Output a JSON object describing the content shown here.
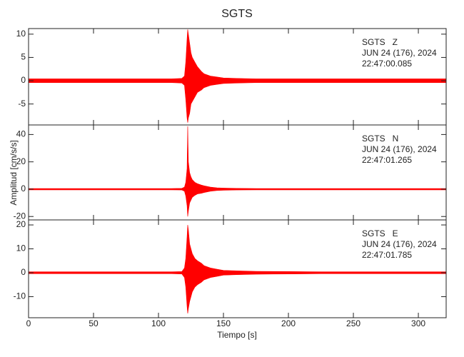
{
  "chart_data": {
    "type": "band",
    "title": "SGTS",
    "x_label": "Tiempo [s]",
    "y_label": "Amplitud [cm/s/s]",
    "xlim": [
      0,
      321.4
    ],
    "xticks": [
      0,
      50,
      100,
      150,
      200,
      250,
      300
    ],
    "x": [
      0,
      20,
      40,
      60,
      80,
      100,
      110,
      118,
      120,
      121,
      122,
      122.5,
      123,
      124,
      125,
      126,
      128,
      130,
      133,
      135,
      140,
      145,
      150,
      160,
      175,
      200,
      225,
      250,
      275,
      300,
      321.4
    ],
    "panels": [
      {
        "annotation": [
          "SGTS   Z",
          "JUN 24 (176), 2024",
          "22:47:00.085"
        ],
        "color": "#ff0000",
        "ylim": [
          -9.5,
          11.2
        ],
        "yticks": [
          -5,
          0,
          5,
          10
        ],
        "upper": [
          0.4,
          0.4,
          0.4,
          0.4,
          0.4,
          0.4,
          0.4,
          0.5,
          1,
          4,
          9,
          11,
          10,
          8,
          6,
          5,
          4,
          3,
          2,
          1.5,
          1,
          0.8,
          0.6,
          0.5,
          0.4,
          0.4,
          0.4,
          0.4,
          0.4,
          0.4,
          0.4
        ],
        "lower": [
          -0.4,
          -0.4,
          -0.4,
          -0.4,
          -0.4,
          -0.4,
          -0.4,
          -0.5,
          -1,
          -4,
          -8,
          -9,
          -8,
          -7,
          -5,
          -4.5,
          -3.5,
          -2.5,
          -2,
          -1.5,
          -1,
          -0.8,
          -0.6,
          -0.5,
          -0.4,
          -0.4,
          -0.4,
          -0.4,
          -0.4,
          -0.4,
          -0.4
        ]
      },
      {
        "annotation": [
          "SGTS   N",
          "JUN 24 (176), 2024",
          "22:47:01.265"
        ],
        "color": "#ff0000",
        "ylim": [
          -22.5,
          47
        ],
        "yticks": [
          -20,
          0,
          20,
          40
        ],
        "upper": [
          0.5,
          0.5,
          0.5,
          0.5,
          0.5,
          0.5,
          0.5,
          0.6,
          1.5,
          5,
          15,
          46,
          20,
          12,
          9,
          7,
          5,
          4,
          3,
          2.5,
          1.5,
          1,
          0.8,
          0.6,
          0.5,
          0.5,
          0.5,
          0.5,
          0.5,
          0.5,
          0.5
        ],
        "lower": [
          -0.5,
          -0.5,
          -0.5,
          -0.5,
          -0.5,
          -0.5,
          -0.5,
          -0.6,
          -1.5,
          -5,
          -12,
          -20,
          -16,
          -10,
          -8,
          -6,
          -4.5,
          -3.5,
          -3,
          -2.5,
          -1.5,
          -1,
          -0.8,
          -0.6,
          -0.5,
          -0.5,
          -0.5,
          -0.5,
          -0.5,
          -0.5,
          -0.5
        ]
      },
      {
        "annotation": [
          "SGTS   E",
          "JUN 24 (176), 2024",
          "22:47:01.785"
        ],
        "color": "#ff0000",
        "ylim": [
          -18.8,
          22.1
        ],
        "yticks": [
          -10,
          0,
          10,
          20
        ],
        "upper": [
          0.4,
          0.4,
          0.4,
          0.4,
          0.4,
          0.4,
          0.4,
          0.5,
          2,
          6,
          15,
          20,
          18,
          12,
          10,
          8,
          6,
          5,
          4,
          3,
          2,
          1.5,
          1,
          0.8,
          0.6,
          0.5,
          0.4,
          0.4,
          0.4,
          0.4,
          0.4
        ],
        "lower": [
          -0.4,
          -0.4,
          -0.4,
          -0.4,
          -0.4,
          -0.4,
          -0.4,
          -0.5,
          -2,
          -6,
          -14,
          -17,
          -15,
          -12,
          -10,
          -8,
          -6,
          -5,
          -4,
          -3,
          -2,
          -1.5,
          -1,
          -0.8,
          -0.6,
          -0.5,
          -0.4,
          -0.4,
          -0.4,
          -0.4,
          -0.4
        ]
      }
    ]
  }
}
